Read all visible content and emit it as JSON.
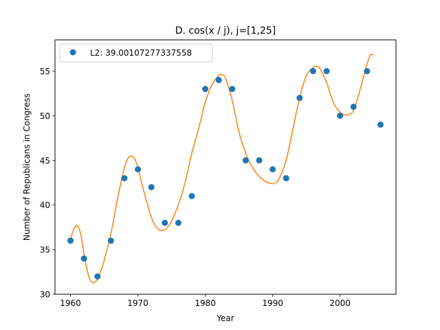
{
  "chart_data": {
    "type": "scatter",
    "title": "D. cos(x / j), j=[1,25]",
    "xlabel": "Year",
    "ylabel": "Number of Republicans in Congress",
    "xlim": [
      1957.7,
      2008.3
    ],
    "ylim": [
      30,
      58.5
    ],
    "xticks": [
      1960,
      1970,
      1980,
      1990,
      2000
    ],
    "yticks": [
      30,
      35,
      40,
      45,
      50,
      55
    ],
    "legend": {
      "position": "top-left",
      "entries": [
        "L2: 39.00107277337558"
      ]
    },
    "grid": false,
    "series": [
      {
        "name": "L2: 39.00107277337558",
        "kind": "scatter",
        "color": "#1f77b4",
        "x": [
          1960,
          1962,
          1964,
          1966,
          1968,
          1970,
          1972,
          1974,
          1976,
          1978,
          1980,
          1982,
          1984,
          1986,
          1988,
          1990,
          1992,
          1994,
          1996,
          1998,
          2000,
          2002,
          2004,
          2006
        ],
        "y": [
          36,
          34,
          32,
          36,
          43,
          44,
          42,
          38,
          38,
          41,
          53,
          54,
          53,
          45,
          45,
          44,
          43,
          52,
          55,
          55,
          50,
          51,
          55,
          49
        ]
      },
      {
        "kind": "line",
        "color": "#ff7f0e",
        "x": [
          1960,
          1960.5,
          1961,
          1961.5,
          1962,
          1962.5,
          1963,
          1963.5,
          1964,
          1964.5,
          1965,
          1966,
          1967,
          1968,
          1968.5,
          1969,
          1969.5,
          1970,
          1971,
          1972,
          1973,
          1974,
          1974.5,
          1975,
          1976,
          1977,
          1978,
          1979,
          1980,
          1981,
          1982,
          1982.5,
          1983,
          1984,
          1985,
          1986,
          1987,
          1988,
          1989,
          1990,
          1990.5,
          1991,
          1992,
          1993,
          1994,
          1995,
          1996,
          1996.5,
          1997,
          1998,
          1999,
          2000,
          2001,
          2002,
          2003,
          2004,
          2004.5,
          2005
        ],
        "y": [
          36.2,
          37.3,
          37.7,
          36.8,
          34.5,
          32.6,
          31.5,
          31.3,
          31.7,
          32.6,
          33.8,
          36.8,
          40.8,
          44.2,
          45.2,
          45.5,
          45.2,
          44.2,
          41.2,
          38.6,
          37.3,
          37.2,
          37.6,
          38.2,
          40.0,
          42.5,
          45.8,
          48.5,
          51.5,
          53.5,
          54.5,
          54.6,
          54.2,
          51.7,
          48.2,
          45.8,
          44.2,
          43.2,
          42.6,
          42.4,
          42.5,
          43.0,
          45.0,
          48.5,
          52.0,
          54.5,
          55.4,
          55.5,
          55.3,
          53.7,
          51.5,
          50.4,
          50.1,
          50.6,
          53.0,
          55.8,
          56.8,
          56.8
        ]
      }
    ]
  }
}
